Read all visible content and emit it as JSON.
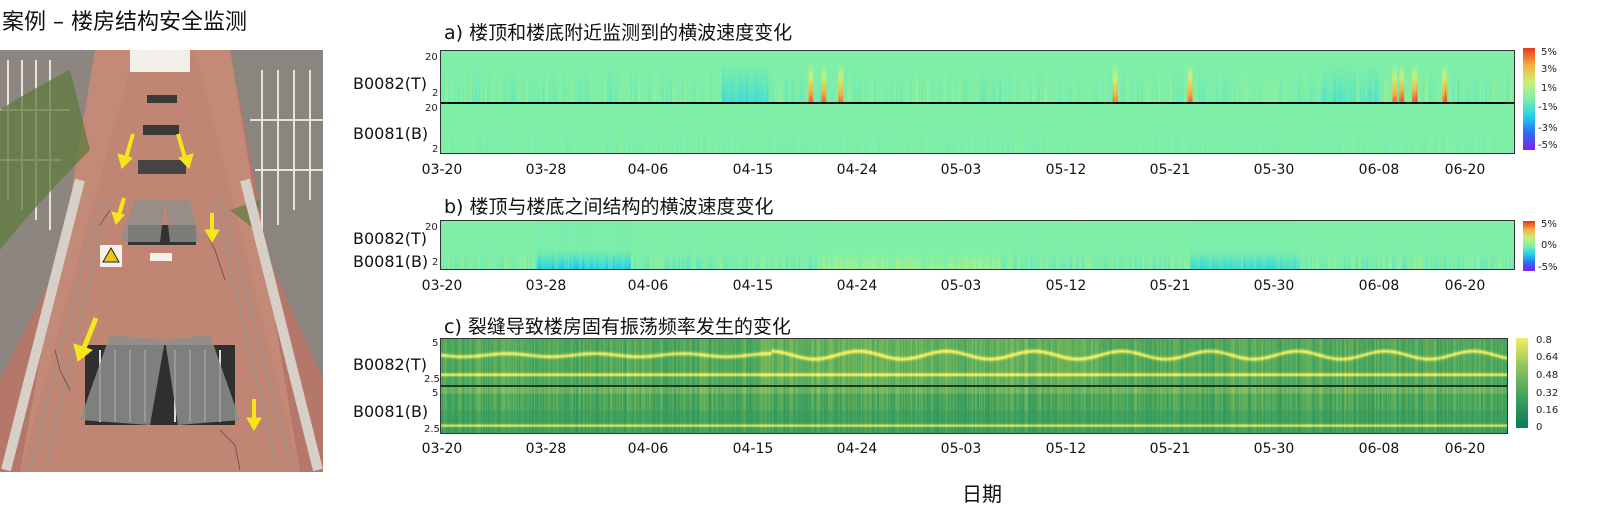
{
  "page_title": "案例 – 楼房结构安全监测",
  "photo": {
    "arrow_icon": "arrow-down-icon",
    "arrow_color": "#f5e61a"
  },
  "colors": {
    "jet": [
      "#7b26e9",
      "#2d6ef5",
      "#23d3ea",
      "#7fefa8",
      "#c9f07a",
      "#f6b040",
      "#e83b1e"
    ],
    "summer": [
      "#0e7c58",
      "#3ea05c",
      "#8cc25d",
      "#f2ee64"
    ]
  },
  "xticks": [
    "03-20",
    "03-28",
    "04-06",
    "04-15",
    "04-24",
    "05-03",
    "05-12",
    "05-21",
    "05-30",
    "06-08",
    "06-20"
  ],
  "xaxis_label": "日期",
  "chart_data": [
    {
      "type": "heatmap",
      "title": "a) 楼顶和楼底附近监测到的横波速度变化",
      "rows": [
        "B0082(T)",
        "B0081(B)"
      ],
      "yticks": [
        {
          "top": "20",
          "bottom": "2"
        },
        {
          "top": "20",
          "bottom": "2"
        }
      ],
      "colorbar": [
        "5%",
        "3%",
        "1%",
        "-1%",
        "-3%",
        "-5%"
      ],
      "colormap": "jet",
      "vmin": -5,
      "vmax": 5,
      "xticks": [
        "03-20",
        "03-28",
        "04-06",
        "04-15",
        "04-24",
        "05-03",
        "05-12",
        "05-21",
        "05-30",
        "06-08",
        "06-20"
      ]
    },
    {
      "type": "heatmap",
      "title": "b) 楼顶与楼底之间结构的横波速度变化",
      "rows": [
        "B0082(T)",
        "B0081(B)"
      ],
      "yticks": [
        "20",
        "2"
      ],
      "colorbar": [
        "5%",
        "0%",
        "-5%"
      ],
      "colormap": "jet",
      "vmin": -5,
      "vmax": 5,
      "xticks": [
        "03-20",
        "03-28",
        "04-06",
        "04-15",
        "04-24",
        "05-03",
        "05-12",
        "05-21",
        "05-30",
        "06-08",
        "06-20"
      ]
    },
    {
      "type": "heatmap",
      "title": "c) 裂缝导致楼房固有振荡频率发生的变化",
      "rows": [
        "B0082(T)",
        "B0081(B)"
      ],
      "yticks": [
        {
          "top": "5",
          "bottom": "2.5"
        },
        {
          "top": "5",
          "bottom": "2.5"
        }
      ],
      "colorbar": [
        "0.8",
        "0.64",
        "0.48",
        "0.32",
        "0.16",
        "0"
      ],
      "colormap": "summer",
      "vmin": 0,
      "vmax": 0.8,
      "xticks": [
        "03-20",
        "03-28",
        "04-06",
        "04-15",
        "04-24",
        "05-03",
        "05-12",
        "05-21",
        "05-30",
        "06-08",
        "06-20"
      ],
      "xlabel": "日期"
    }
  ]
}
